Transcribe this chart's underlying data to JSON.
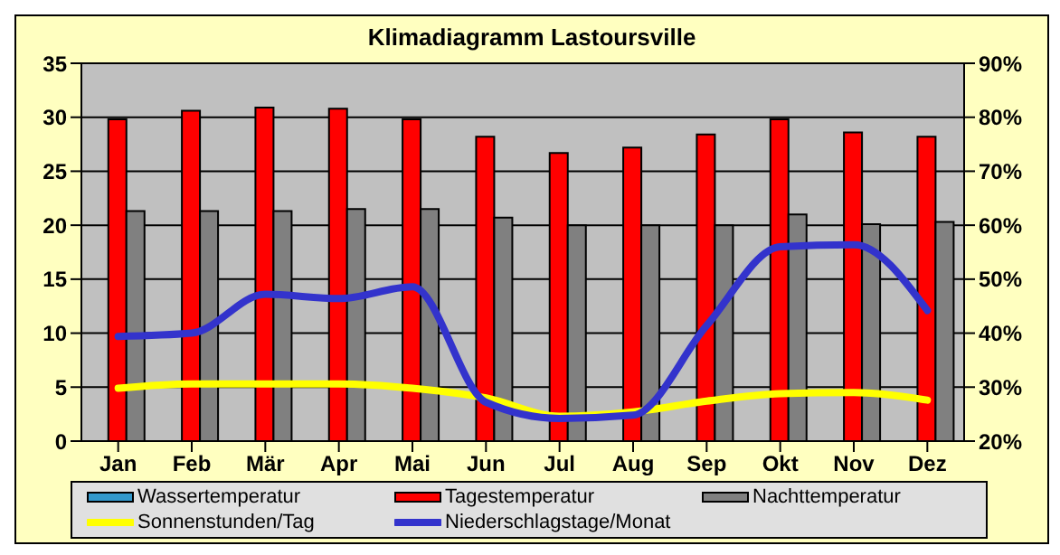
{
  "chart_data": {
    "type": "bar",
    "title": "Klimadiagramm Lastoursville",
    "categories": [
      "Jan",
      "Feb",
      "Mär",
      "Apr",
      "Mai",
      "Jun",
      "Jul",
      "Aug",
      "Sep",
      "Okt",
      "Nov",
      "Dez"
    ],
    "series": [
      {
        "name": "Wassertemperatur",
        "color": "#3399cc",
        "values": [
          null,
          null,
          null,
          null,
          null,
          null,
          null,
          null,
          null,
          null,
          null,
          null
        ]
      },
      {
        "name": "Tagestemperatur",
        "color": "#ff0000",
        "values": [
          29.8,
          30.6,
          30.9,
          30.8,
          29.8,
          28.2,
          26.7,
          27.2,
          28.4,
          29.8,
          28.6,
          28.2
        ]
      },
      {
        "name": "Nachttemperatur",
        "color": "#808080",
        "values": [
          21.3,
          21.3,
          21.3,
          21.5,
          21.5,
          20.7,
          20.0,
          20.0,
          20.0,
          21.0,
          20.1,
          20.3
        ]
      },
      {
        "name": "Sonnenstunden/Tag",
        "type": "line",
        "color": "#ffff00",
        "values": [
          4.9,
          5.3,
          5.3,
          5.3,
          4.9,
          4.0,
          2.3,
          2.7,
          3.7,
          4.4,
          4.5,
          3.8
        ]
      },
      {
        "name": "Niederschlagstage/Monat",
        "type": "line",
        "color": "#3333cc",
        "values": [
          9.7,
          10.0,
          13.6,
          13.2,
          14.3,
          3.6,
          2.1,
          2.4,
          10.7,
          18.0,
          18.2,
          12.1
        ]
      }
    ],
    "ylim": [
      0,
      35
    ],
    "yticks": [
      0,
      5,
      10,
      15,
      20,
      25,
      30,
      35
    ],
    "y2lim": [
      20,
      90
    ],
    "y2ticks": [
      {
        "value": 20,
        "label": "20%"
      },
      {
        "value": 30,
        "label": "30%"
      },
      {
        "value": 40,
        "label": "40%"
      },
      {
        "value": 50,
        "label": "50%"
      },
      {
        "value": 60,
        "label": "60%"
      },
      {
        "value": 70,
        "label": "70%"
      },
      {
        "value": 80,
        "label": "80%"
      },
      {
        "value": 90,
        "label": "90%"
      }
    ],
    "grid": "y",
    "legend": "bottom",
    "marker": "none"
  }
}
